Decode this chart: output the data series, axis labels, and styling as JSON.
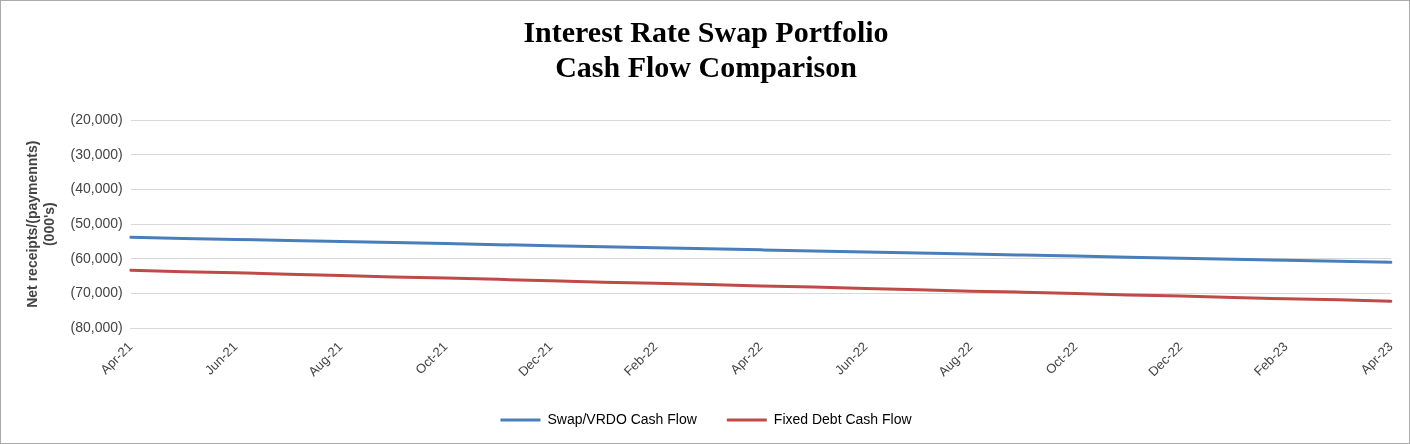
{
  "chart_data": {
    "type": "line",
    "title": "Interest Rate Swap Portfolio\nCash Flow Comparison",
    "ylabel": "Net receipts/(paymennts)\n(000's)",
    "categories": [
      "Apr-21",
      null,
      "Jun-21",
      null,
      "Aug-21",
      null,
      "Oct-21",
      null,
      "Dec-21",
      null,
      "Feb-22",
      null,
      "Apr-22",
      null,
      "Jun-22",
      null,
      "Aug-22",
      null,
      "Oct-22",
      null,
      "Dec-22",
      null,
      "Feb-23",
      null,
      "Apr-23"
    ],
    "series": [
      {
        "name": "Swap/VRDO Cash Flow",
        "color": "#4a7ebb",
        "values": [
          -53800,
          -54100,
          -54400,
          -54700,
          -55000,
          -55300,
          -55600,
          -55900,
          -56200,
          -56500,
          -56800,
          -57100,
          -57400,
          -57700,
          -58000,
          -58300,
          -58600,
          -58900,
          -59200,
          -59500,
          -59800,
          -60100,
          -60400,
          -60700,
          -61000
        ]
      },
      {
        "name": "Fixed Debt Cash Flow",
        "color": "#be4b48",
        "values": [
          -63300,
          -63700,
          -64000,
          -64400,
          -64800,
          -65200,
          -65500,
          -65900,
          -66300,
          -66700,
          -67000,
          -67400,
          -67800,
          -68100,
          -68500,
          -68900,
          -69300,
          -69600,
          -70000,
          -70400,
          -70700,
          -71100,
          -71500,
          -71800,
          -72200
        ]
      }
    ],
    "ylim": [
      -80000,
      -20000
    ],
    "yticks": [
      {
        "value": -80000,
        "label": "(80,000)"
      },
      {
        "value": -70000,
        "label": "(70,000)"
      },
      {
        "value": -60000,
        "label": "(60,000)"
      },
      {
        "value": -50000,
        "label": "(50,000)"
      },
      {
        "value": -40000,
        "label": "(40,000)"
      },
      {
        "value": -30000,
        "label": "(30,000)"
      },
      {
        "value": -20000,
        "label": "(20,000)"
      }
    ],
    "grid": "y",
    "legend": "bottom",
    "marker": "none",
    "line_style": "solid"
  }
}
